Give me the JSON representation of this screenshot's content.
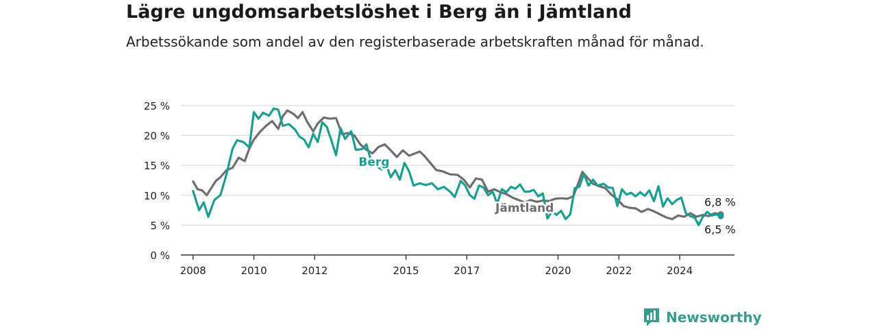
{
  "chart_data": {
    "type": "line",
    "title": "Lägre ungdomsarbetslöshet i Berg än i Jämtland",
    "subtitle": "Arbetssökande som andel av den registerbaserade arbetskraften månad för månad.",
    "xlabel": "",
    "ylabel": "",
    "x_ticks": [
      "2008",
      "2010",
      "2012",
      "2015",
      "2017",
      "2020",
      "2022",
      "2024"
    ],
    "y_ticks": [
      "0 %",
      "5 %",
      "10 %",
      "15 %",
      "20 %",
      "25 %"
    ],
    "ylim": [
      0,
      25
    ],
    "xlim": [
      2007.6,
      2025.8
    ],
    "grid": true,
    "series": [
      {
        "name": "Berg",
        "color": "#1a9e8f",
        "end_label": "6,5 %",
        "points": [
          [
            2008.0,
            10.7
          ],
          [
            2008.2,
            7.5
          ],
          [
            2008.35,
            8.8
          ],
          [
            2008.5,
            6.4
          ],
          [
            2008.7,
            9.2
          ],
          [
            2008.9,
            10.0
          ],
          [
            2009.1,
            13.5
          ],
          [
            2009.3,
            17.8
          ],
          [
            2009.45,
            19.2
          ],
          [
            2009.65,
            18.9
          ],
          [
            2009.85,
            18.0
          ],
          [
            2010.0,
            23.9
          ],
          [
            2010.15,
            22.8
          ],
          [
            2010.3,
            23.8
          ],
          [
            2010.5,
            23.3
          ],
          [
            2010.65,
            24.5
          ],
          [
            2010.8,
            24.3
          ],
          [
            2010.95,
            21.6
          ],
          [
            2011.15,
            21.9
          ],
          [
            2011.35,
            21.0
          ],
          [
            2011.5,
            19.8
          ],
          [
            2011.65,
            19.3
          ],
          [
            2011.8,
            18.0
          ],
          [
            2011.95,
            20.3
          ],
          [
            2012.1,
            18.9
          ],
          [
            2012.25,
            22.2
          ],
          [
            2012.4,
            21.4
          ],
          [
            2012.55,
            19.1
          ],
          [
            2012.7,
            16.7
          ],
          [
            2012.85,
            21.2
          ],
          [
            2013.0,
            19.4
          ],
          [
            2013.2,
            20.7
          ],
          [
            2013.35,
            17.6
          ],
          [
            2013.55,
            17.7
          ],
          [
            2013.7,
            18.5
          ],
          [
            2013.85,
            15.8
          ],
          [
            2014.0,
            15.0
          ],
          [
            2014.2,
            14.3
          ],
          [
            2014.35,
            15.1
          ],
          [
            2014.5,
            13.0
          ],
          [
            2014.65,
            14.2
          ],
          [
            2014.8,
            12.6
          ],
          [
            2014.95,
            15.4
          ],
          [
            2015.1,
            14.0
          ],
          [
            2015.25,
            11.6
          ],
          [
            2015.45,
            12.0
          ],
          [
            2015.65,
            11.7
          ],
          [
            2015.85,
            12.0
          ],
          [
            2016.05,
            11.0
          ],
          [
            2016.25,
            11.4
          ],
          [
            2016.45,
            10.6
          ],
          [
            2016.6,
            9.7
          ],
          [
            2016.8,
            12.4
          ],
          [
            2016.95,
            11.6
          ],
          [
            2017.1,
            10.0
          ],
          [
            2017.25,
            9.4
          ],
          [
            2017.4,
            11.6
          ],
          [
            2017.55,
            11.3
          ],
          [
            2017.7,
            10.0
          ],
          [
            2017.85,
            10.6
          ],
          [
            2018.0,
            8.6
          ],
          [
            2018.15,
            11.0
          ],
          [
            2018.3,
            10.5
          ],
          [
            2018.45,
            11.4
          ],
          [
            2018.6,
            11.1
          ],
          [
            2018.75,
            11.8
          ],
          [
            2018.9,
            10.6
          ],
          [
            2019.05,
            10.6
          ],
          [
            2019.2,
            10.9
          ],
          [
            2019.35,
            9.8
          ],
          [
            2019.5,
            10.3
          ],
          [
            2019.65,
            6.1
          ],
          [
            2019.8,
            7.3
          ],
          [
            2019.95,
            6.7
          ],
          [
            2020.1,
            7.4
          ],
          [
            2020.25,
            6.0
          ],
          [
            2020.4,
            6.8
          ],
          [
            2020.55,
            11.2
          ],
          [
            2020.7,
            11.4
          ],
          [
            2020.85,
            13.6
          ],
          [
            2021.0,
            11.6
          ],
          [
            2021.15,
            12.6
          ],
          [
            2021.3,
            11.6
          ],
          [
            2021.5,
            11.9
          ],
          [
            2021.65,
            11.3
          ],
          [
            2021.8,
            11.2
          ],
          [
            2021.95,
            8.2
          ],
          [
            2022.1,
            11.0
          ],
          [
            2022.25,
            10.1
          ],
          [
            2022.4,
            10.4
          ],
          [
            2022.55,
            9.8
          ],
          [
            2022.7,
            10.5
          ],
          [
            2022.85,
            9.9
          ],
          [
            2023.0,
            10.8
          ],
          [
            2023.15,
            9.0
          ],
          [
            2023.3,
            11.5
          ],
          [
            2023.45,
            8.1
          ],
          [
            2023.6,
            9.5
          ],
          [
            2023.75,
            8.5
          ],
          [
            2023.9,
            9.2
          ],
          [
            2024.05,
            9.6
          ],
          [
            2024.2,
            7.0
          ],
          [
            2024.35,
            6.5
          ],
          [
            2024.5,
            6.2
          ],
          [
            2024.62,
            5.0
          ],
          [
            2024.75,
            6.3
          ],
          [
            2024.9,
            7.2
          ],
          [
            2025.05,
            6.6
          ],
          [
            2025.2,
            6.8
          ],
          [
            2025.35,
            6.5
          ]
        ]
      },
      {
        "name": "Jämtland",
        "color": "#6d6d72",
        "end_label": "6,8 %",
        "points": [
          [
            2008.0,
            12.3
          ],
          [
            2008.15,
            11.0
          ],
          [
            2008.3,
            10.8
          ],
          [
            2008.45,
            10.0
          ],
          [
            2008.6,
            11.2
          ],
          [
            2008.75,
            12.4
          ],
          [
            2008.9,
            13.0
          ],
          [
            2009.1,
            14.2
          ],
          [
            2009.3,
            14.6
          ],
          [
            2009.5,
            16.3
          ],
          [
            2009.7,
            15.7
          ],
          [
            2009.85,
            17.8
          ],
          [
            2010.0,
            19.3
          ],
          [
            2010.2,
            20.6
          ],
          [
            2010.4,
            21.6
          ],
          [
            2010.6,
            22.4
          ],
          [
            2010.8,
            21.1
          ],
          [
            2010.95,
            23.2
          ],
          [
            2011.1,
            24.2
          ],
          [
            2011.3,
            23.6
          ],
          [
            2011.45,
            22.9
          ],
          [
            2011.6,
            23.9
          ],
          [
            2011.75,
            22.3
          ],
          [
            2011.95,
            20.7
          ],
          [
            2012.1,
            22.0
          ],
          [
            2012.3,
            23.0
          ],
          [
            2012.5,
            22.8
          ],
          [
            2012.7,
            22.9
          ],
          [
            2012.9,
            20.2
          ],
          [
            2013.1,
            20.4
          ],
          [
            2013.3,
            20.0
          ],
          [
            2013.5,
            18.5
          ],
          [
            2013.7,
            17.6
          ],
          [
            2013.9,
            17.0
          ],
          [
            2014.1,
            18.1
          ],
          [
            2014.3,
            18.5
          ],
          [
            2014.5,
            17.5
          ],
          [
            2014.7,
            16.4
          ],
          [
            2014.9,
            17.5
          ],
          [
            2015.1,
            16.6
          ],
          [
            2015.3,
            17.0
          ],
          [
            2015.45,
            17.3
          ],
          [
            2015.6,
            16.6
          ],
          [
            2015.8,
            15.4
          ],
          [
            2016.0,
            14.2
          ],
          [
            2016.2,
            14.0
          ],
          [
            2016.45,
            13.5
          ],
          [
            2016.7,
            13.4
          ],
          [
            2016.9,
            12.6
          ],
          [
            2017.1,
            11.3
          ],
          [
            2017.3,
            12.8
          ],
          [
            2017.5,
            12.6
          ],
          [
            2017.7,
            10.6
          ],
          [
            2017.9,
            11.0
          ],
          [
            2018.1,
            10.5
          ],
          [
            2018.3,
            10.2
          ],
          [
            2018.5,
            9.6
          ],
          [
            2018.7,
            9.2
          ],
          [
            2018.9,
            8.8
          ],
          [
            2019.1,
            9.2
          ],
          [
            2019.3,
            8.9
          ],
          [
            2019.5,
            9.1
          ],
          [
            2019.7,
            9.0
          ],
          [
            2019.9,
            9.4
          ],
          [
            2020.1,
            9.5
          ],
          [
            2020.3,
            9.4
          ],
          [
            2020.5,
            9.8
          ],
          [
            2020.65,
            11.8
          ],
          [
            2020.8,
            13.9
          ],
          [
            2020.95,
            13.0
          ],
          [
            2021.15,
            11.9
          ],
          [
            2021.35,
            11.5
          ],
          [
            2021.55,
            11.2
          ],
          [
            2021.75,
            10.1
          ],
          [
            2021.95,
            9.3
          ],
          [
            2022.15,
            8.2
          ],
          [
            2022.35,
            7.9
          ],
          [
            2022.55,
            7.8
          ],
          [
            2022.75,
            7.2
          ],
          [
            2022.95,
            7.7
          ],
          [
            2023.15,
            7.3
          ],
          [
            2023.35,
            6.8
          ],
          [
            2023.55,
            6.3
          ],
          [
            2023.75,
            6.0
          ],
          [
            2023.95,
            6.6
          ],
          [
            2024.15,
            6.4
          ],
          [
            2024.35,
            7.0
          ],
          [
            2024.55,
            6.4
          ],
          [
            2024.75,
            6.7
          ],
          [
            2024.95,
            6.5
          ],
          [
            2025.15,
            7.0
          ],
          [
            2025.35,
            6.8
          ]
        ]
      }
    ]
  },
  "brand": {
    "name": "Newsworthy",
    "color": "#3a9a8e"
  }
}
